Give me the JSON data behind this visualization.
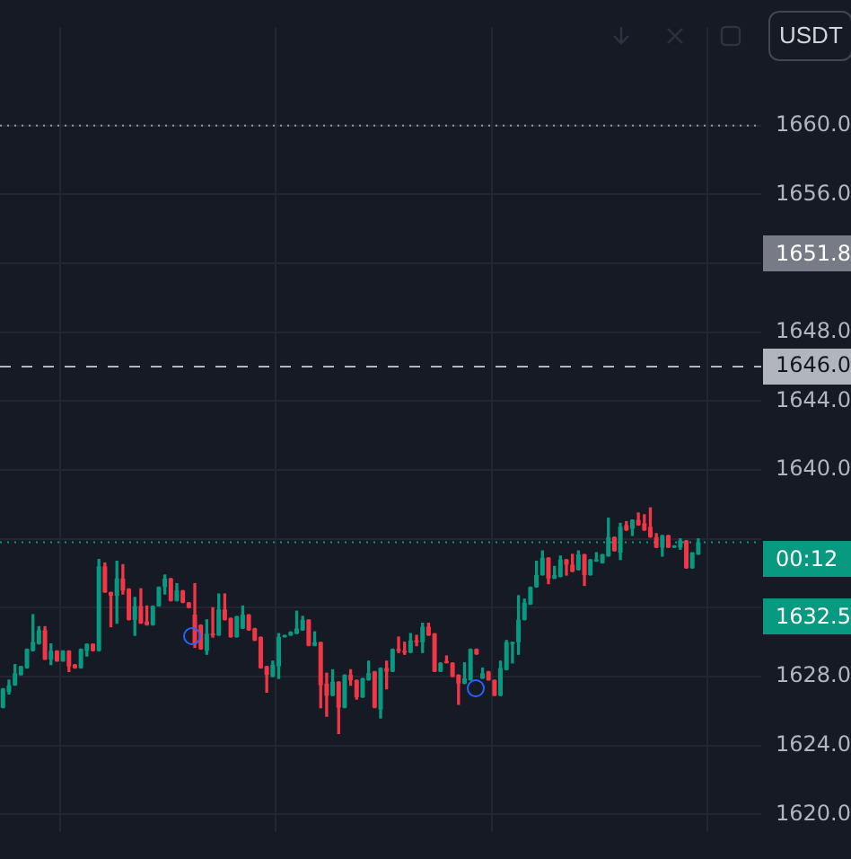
{
  "chart_data": {
    "type": "candlestick",
    "categories": [
      null,
      null,
      null,
      null,
      null,
      null,
      null,
      null,
      null,
      null,
      null,
      null,
      null,
      null,
      null,
      null,
      null,
      null,
      null,
      null,
      null,
      null,
      null,
      null,
      null,
      null,
      null,
      null,
      null,
      null,
      null,
      null,
      null,
      null,
      null,
      null,
      null,
      null,
      null,
      null,
      null,
      null,
      null,
      null,
      null,
      null,
      null,
      null,
      null,
      null,
      null,
      null,
      null,
      null,
      null,
      null,
      null,
      null,
      null,
      null,
      null,
      null,
      null,
      null,
      null,
      null,
      null,
      null,
      null,
      null,
      null,
      null,
      null,
      null,
      null,
      null,
      null,
      null,
      null,
      null,
      null,
      null,
      null,
      null,
      null,
      null,
      null,
      null,
      null,
      null,
      null,
      null,
      null,
      null,
      null,
      null,
      null,
      null,
      null,
      null,
      null,
      null,
      null,
      null,
      null,
      null,
      null,
      null,
      null,
      null,
      null,
      null,
      null,
      null,
      null,
      null,
      null,
      null,
      null,
      null,
      null,
      null,
      null,
      null,
      null,
      null,
      null
    ],
    "ohlc": [
      [
        1626.2,
        1627.3,
        1626.2,
        1627.3
      ],
      [
        1627.1,
        1627.8,
        1627.0,
        1627.5
      ],
      [
        1627.5,
        1628.7,
        1627.5,
        1628.2
      ],
      [
        1628.1,
        1628.6,
        1628.1,
        1628.6
      ],
      [
        1628.5,
        1629.6,
        1628.5,
        1629.6
      ],
      [
        1629.5,
        1631.6,
        1629.5,
        1630.0
      ],
      [
        1629.9,
        1630.9,
        1629.9,
        1630.7
      ],
      [
        1630.7,
        1630.9,
        1629.0,
        1629.0
      ],
      [
        1629.0,
        1629.9,
        1628.7,
        1629.5
      ],
      [
        1629.5,
        1629.5,
        1628.9,
        1628.9
      ],
      [
        1628.9,
        1629.5,
        1628.9,
        1629.5
      ],
      [
        1629.5,
        1629.5,
        1628.3,
        1628.6
      ],
      [
        1628.7,
        1628.7,
        1628.5,
        1628.5
      ],
      [
        1628.5,
        1629.6,
        1628.5,
        1629.6
      ],
      [
        1629.5,
        1629.9,
        1629.2,
        1629.9
      ],
      [
        1629.9,
        1629.9,
        1629.5,
        1629.5
      ],
      [
        1629.5,
        1634.8,
        1629.5,
        1634.4
      ],
      [
        1634.4,
        1634.6,
        1632.9,
        1632.9
      ],
      [
        1632.9,
        1632.9,
        1630.9,
        1632.7
      ],
      [
        1632.7,
        1634.7,
        1631.1,
        1633.7
      ],
      [
        1633.7,
        1634.5,
        1632.8,
        1633.0
      ],
      [
        1633.1,
        1633.1,
        1631.3,
        1631.3
      ],
      [
        1631.3,
        1632.6,
        1630.4,
        1632.1
      ],
      [
        1632.1,
        1633.1,
        1631.1,
        1631.1
      ],
      [
        1631.2,
        1632.1,
        1631.0,
        1631.0
      ],
      [
        1631.0,
        1632.1,
        1631.0,
        1632.1
      ],
      [
        1632.1,
        1633.2,
        1632.1,
        1633.2
      ],
      [
        1633.2,
        1633.9,
        1632.8,
        1633.7
      ],
      [
        1633.7,
        1633.7,
        1632.4,
        1632.4
      ],
      [
        1632.4,
        1633.4,
        1632.4,
        1633.0
      ],
      [
        1633.0,
        1633.0,
        1632.3,
        1632.3
      ],
      [
        1632.3,
        1632.3,
        1632.0,
        1632.0
      ],
      [
        1631.6,
        1633.4,
        1629.7,
        1629.9
      ],
      [
        1631.0,
        1631.0,
        1629.6,
        1629.6
      ],
      [
        1629.5,
        1631.3,
        1629.3,
        1630.5
      ],
      [
        1630.5,
        1632.0,
        1630.3,
        1630.4
      ],
      [
        1630.4,
        1632.8,
        1630.4,
        1631.9
      ],
      [
        1631.9,
        1632.8,
        1631.3,
        1631.3
      ],
      [
        1631.4,
        1631.4,
        1630.3,
        1630.3
      ],
      [
        1630.3,
        1631.5,
        1630.3,
        1631.5
      ],
      [
        1630.8,
        1632.1,
        1630.8,
        1631.6
      ],
      [
        1631.6,
        1631.6,
        1630.7,
        1630.7
      ],
      [
        1630.8,
        1630.8,
        1630.1,
        1630.1
      ],
      [
        1630.3,
        1630.3,
        1628.5,
        1628.5
      ],
      [
        1628.6,
        1628.6,
        1627.1,
        1628.1
      ],
      [
        1628.0,
        1628.9,
        1628.0,
        1628.7
      ],
      [
        1628.6,
        1630.5,
        1627.9,
        1630.3
      ],
      [
        1630.3,
        1630.4,
        1630.3,
        1630.4
      ],
      [
        1630.4,
        1630.6,
        1630.4,
        1630.6
      ],
      [
        1630.5,
        1631.8,
        1630.5,
        1630.8
      ],
      [
        1630.7,
        1631.5,
        1630.7,
        1631.3
      ],
      [
        1631.3,
        1631.3,
        1629.8,
        1629.8
      ],
      [
        1629.8,
        1630.6,
        1629.8,
        1630.0
      ],
      [
        1630.0,
        1630.0,
        1626.2,
        1627.5
      ],
      [
        1627.6,
        1628.2,
        1625.7,
        1626.9
      ],
      [
        1626.9,
        1628.4,
        1626.9,
        1627.7
      ],
      [
        1627.7,
        1627.7,
        1624.7,
        1626.2
      ],
      [
        1626.2,
        1628.1,
        1626.2,
        1628.1
      ],
      [
        1628.1,
        1628.4,
        1627.5,
        1627.8
      ],
      [
        1627.8,
        1627.8,
        1626.7,
        1626.8
      ],
      [
        1626.8,
        1627.9,
        1626.8,
        1627.9
      ],
      [
        1627.8,
        1628.9,
        1627.8,
        1628.2
      ],
      [
        1628.3,
        1628.3,
        1626.2,
        1626.2
      ],
      [
        1626.1,
        1628.5,
        1625.6,
        1628.5
      ],
      [
        1628.5,
        1628.9,
        1627.3,
        1628.3
      ],
      [
        1628.3,
        1629.6,
        1628.3,
        1629.6
      ],
      [
        1629.6,
        1630.3,
        1629.4,
        1629.5
      ],
      [
        1629.5,
        1630.0,
        1629.3,
        1629.4
      ],
      [
        1629.4,
        1630.5,
        1629.4,
        1630.1
      ],
      [
        1630.1,
        1630.4,
        1629.8,
        1630.0
      ],
      [
        1630.0,
        1631.1,
        1629.4,
        1630.9
      ],
      [
        1630.9,
        1631.1,
        1630.4,
        1630.4
      ],
      [
        1630.5,
        1630.5,
        1628.3,
        1628.3
      ],
      [
        1628.3,
        1628.8,
        1628.3,
        1628.8
      ],
      [
        1628.9,
        1629.2,
        1628.8,
        1628.8
      ],
      [
        1628.8,
        1628.8,
        1628.0,
        1628.0
      ],
      [
        1628.1,
        1628.1,
        1626.4,
        1627.6
      ],
      [
        1627.6,
        1628.8,
        1627.6,
        1627.9
      ],
      [
        1627.8,
        1629.6,
        1627.8,
        1629.6
      ],
      [
        1629.6,
        1629.6,
        1629.3,
        1629.3
      ],
      [
        1627.9,
        1628.5,
        1627.9,
        1628.2
      ],
      [
        1628.3,
        1628.3,
        1627.8,
        1627.8
      ],
      [
        1627.8,
        1627.8,
        1626.9,
        1626.9
      ],
      [
        1626.9,
        1628.9,
        1626.9,
        1628.5
      ],
      [
        1628.4,
        1630.1,
        1628.4,
        1630.0
      ],
      [
        1629.9,
        1630.0,
        1628.8,
        1630.0
      ],
      [
        1630.0,
        1632.7,
        1629.3,
        1631.3
      ],
      [
        1631.3,
        1632.5,
        1631.3,
        1632.3
      ],
      [
        1632.2,
        1633.2,
        1632.2,
        1633.2
      ],
      [
        1633.2,
        1634.7,
        1633.2,
        1633.9
      ],
      [
        1633.9,
        1635.3,
        1633.9,
        1634.9
      ],
      [
        1634.9,
        1634.9,
        1633.4,
        1633.7
      ],
      [
        1633.7,
        1634.4,
        1633.7,
        1633.9
      ],
      [
        1633.8,
        1635.0,
        1633.8,
        1634.8
      ],
      [
        1634.8,
        1634.8,
        1633.9,
        1634.5
      ],
      [
        1634.5,
        1635.1,
        1634.1,
        1634.1
      ],
      [
        1634.2,
        1635.3,
        1634.2,
        1635.1
      ],
      [
        1635.1,
        1635.1,
        1633.3,
        1633.9
      ],
      [
        1633.9,
        1634.8,
        1633.9,
        1634.8
      ],
      [
        1634.7,
        1635.2,
        1634.7,
        1634.8
      ],
      [
        1634.6,
        1635.1,
        1634.6,
        1635.1
      ],
      [
        1635.0,
        1637.2,
        1635.0,
        1636.1
      ],
      [
        1636.1,
        1636.1,
        1635.3,
        1635.3
      ],
      [
        1635.2,
        1636.9,
        1634.8,
        1636.7
      ],
      [
        1636.8,
        1637.0,
        1636.5,
        1636.5
      ],
      [
        1636.6,
        1637.1,
        1636.2,
        1637.1
      ],
      [
        1637.1,
        1637.5,
        1636.8,
        1636.8
      ],
      [
        1636.9,
        1637.4,
        1636.5,
        1636.5
      ],
      [
        1636.7,
        1637.8,
        1636.1,
        1636.1
      ],
      [
        1636.1,
        1636.3,
        1635.5,
        1635.5
      ],
      [
        1635.5,
        1636.2,
        1635.0,
        1636.2
      ],
      [
        1636.2,
        1636.2,
        1635.5,
        1635.5
      ],
      [
        1635.5,
        1635.6,
        1635.5,
        1635.6
      ],
      [
        1635.5,
        1636.0,
        1635.4,
        1635.9
      ],
      [
        1635.9,
        1635.9,
        1634.3,
        1634.3
      ],
      [
        1634.3,
        1635.2,
        1634.3,
        1635.2
      ],
      [
        1635.1,
        1636.0,
        1635.1,
        1635.8
      ],
      null,
      null,
      null,
      null,
      null,
      null,
      null,
      null,
      null,
      null
    ],
    "colors": [
      "#089981",
      "#089981",
      "#089981",
      "#089981",
      "#089981",
      "#089981",
      "#089981",
      "#f23645",
      "#089981",
      "#f23645",
      "#089981",
      "#f23645",
      "#f23645",
      "#089981",
      "#089981",
      "#f23645",
      "#089981",
      "#f23645",
      "#f23645",
      "#089981",
      "#f23645",
      "#f23645",
      "#089981",
      "#f23645",
      "#f23645",
      "#089981",
      "#089981",
      "#089981",
      "#f23645",
      "#089981",
      "#f23645",
      "#f23645",
      "#f23645",
      "#f23645",
      "#089981",
      "#f23645",
      "#089981",
      "#f23645",
      "#f23645",
      "#089981",
      "#089981",
      "#f23645",
      "#f23645",
      "#f23645",
      "#f23645",
      "#089981",
      "#089981",
      "#089981",
      "#089981",
      "#089981",
      "#089981",
      "#f23645",
      "#089981",
      "#f23645",
      "#f23645",
      "#089981",
      "#f23645",
      "#089981",
      "#f23645",
      "#f23645",
      "#089981",
      "#089981",
      "#f23645",
      "#089981",
      "#f23645",
      "#089981",
      "#f23645",
      "#f23645",
      "#089981",
      "#f23645",
      "#089981",
      "#f23645",
      "#f23645",
      "#089981",
      "#f23645",
      "#f23645",
      "#f23645",
      "#089981",
      "#089981",
      "#f23645",
      "#089981",
      "#f23645",
      "#f23645",
      "#089981",
      "#089981",
      "#089981",
      "#089981",
      "#089981",
      "#089981",
      "#089981",
      "#089981",
      "#f23645",
      "#089981",
      "#089981",
      "#f23645",
      "#f23645",
      "#089981",
      "#f23645",
      "#089981",
      "#089981",
      "#089981",
      "#089981",
      "#f23645",
      "#089981",
      "#f23645",
      "#089981",
      "#f23645",
      "#f23645",
      "#f23645",
      "#f23645",
      "#089981",
      "#f23645",
      "#089981",
      "#089981",
      "#f23645",
      "#089981",
      "#089981",
      null,
      null,
      null,
      null,
      null,
      null,
      null,
      null,
      null,
      null
    ],
    "ylim": [
      1619,
      1665.7
    ],
    "yticks": [
      {
        "value": 1620,
        "label": "1620.0"
      },
      {
        "value": 1624,
        "label": "1624.0"
      },
      {
        "value": 1628,
        "label": "1628.0"
      },
      {
        "value": 1632,
        "label": null
      },
      {
        "value": 1636,
        "label": null
      },
      {
        "value": 1640,
        "label": "1640.0"
      },
      {
        "value": 1644,
        "label": "1644.0"
      },
      {
        "value": 1648,
        "label": "1648.0"
      },
      {
        "value": 1652,
        "label": null
      },
      {
        "value": 1656,
        "label": "1656.0"
      },
      {
        "value": 1660,
        "label": "1660.0"
      }
    ],
    "ref_lines": [
      {
        "axis": "y",
        "value": 1660,
        "color": "#9598a1",
        "line_style": "dotted"
      },
      {
        "axis": "y",
        "value": 1646,
        "label": "1646.0",
        "color": "#b2b5be",
        "line_style": "dashed"
      },
      {
        "axis": "y",
        "value": 1635.8,
        "color": "#089981",
        "line_style": "dotted"
      }
    ],
    "annotations": [
      "USDT",
      "1651.8",
      "00:12",
      "1632.5"
    ],
    "grid": true,
    "legend": false,
    "tick_labels": "y"
  }
}
